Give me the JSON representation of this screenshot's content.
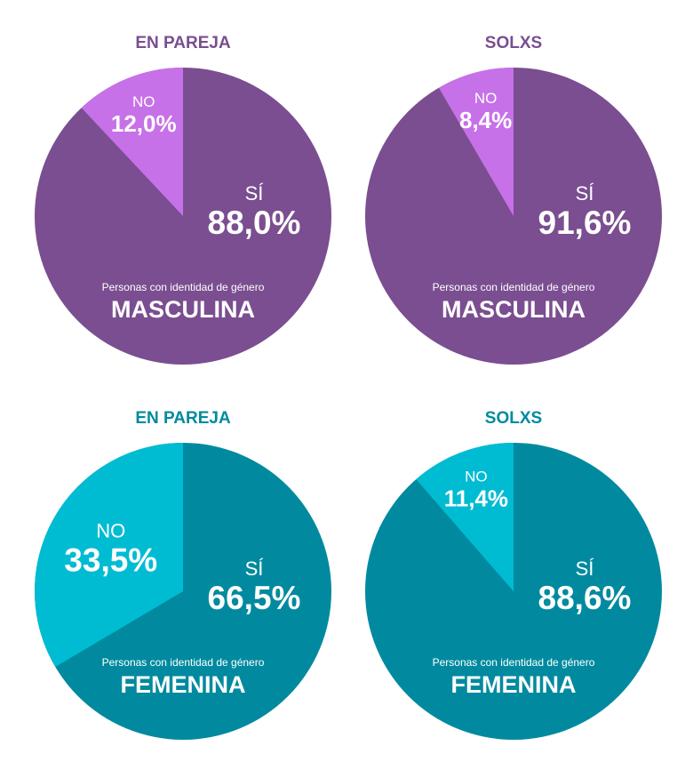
{
  "colors": {
    "masc_main": "#7a4e90",
    "masc_accent": "#c771e8",
    "masc_title": "#7a4e90",
    "fem_main": "#018a9f",
    "fem_accent": "#00bcd3",
    "fem_title": "#018a9f",
    "label": "#ffffff"
  },
  "chart_data": [
    {
      "type": "pie",
      "title": "EN PAREJA",
      "caption": "Personas con identidad de género",
      "group": "MASCULINA",
      "palette": "masc",
      "slices": [
        {
          "label": "SÍ",
          "value": 88.0,
          "display": "88,0%"
        },
        {
          "label": "NO",
          "value": 12.0,
          "display": "12,0%"
        }
      ]
    },
    {
      "type": "pie",
      "title": "SOLXS",
      "caption": "Personas con identidad de género",
      "group": "MASCULINA",
      "palette": "masc",
      "slices": [
        {
          "label": "SÍ",
          "value": 91.6,
          "display": "91,6%"
        },
        {
          "label": "NO",
          "value": 8.4,
          "display": "8,4%"
        }
      ]
    },
    {
      "type": "pie",
      "title": "EN PAREJA",
      "caption": "Personas con identidad de género",
      "group": "FEMENINA",
      "palette": "fem",
      "slices": [
        {
          "label": "SÍ",
          "value": 66.5,
          "display": "66,5%"
        },
        {
          "label": "NO",
          "value": 33.5,
          "display": "33,5%"
        }
      ]
    },
    {
      "type": "pie",
      "title": "SOLXS",
      "caption": "Personas con identidad de género",
      "group": "FEMENINA",
      "palette": "fem",
      "slices": [
        {
          "label": "SÍ",
          "value": 88.6,
          "display": "88,6%"
        },
        {
          "label": "NO",
          "value": 11.4,
          "display": "11,4%"
        }
      ]
    }
  ]
}
